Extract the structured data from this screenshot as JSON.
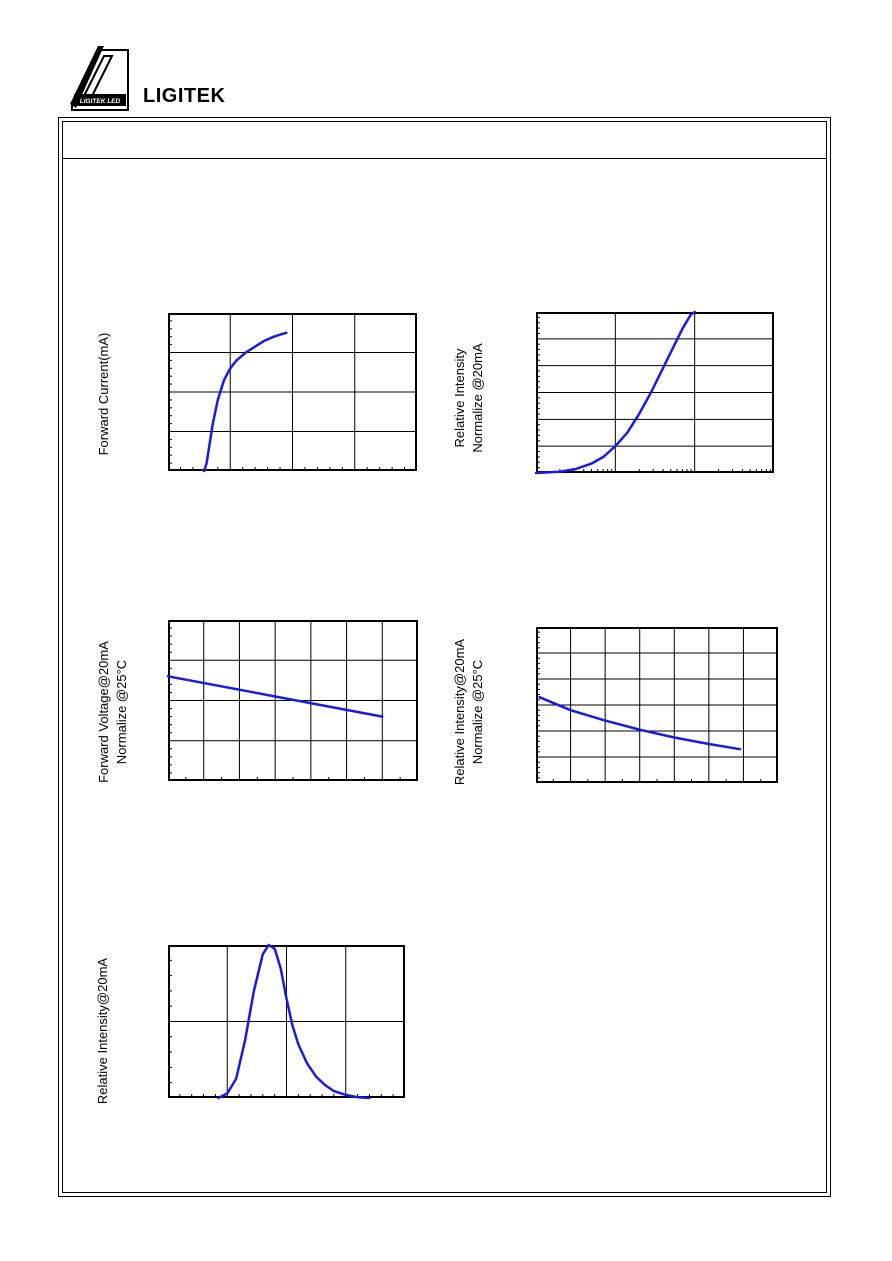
{
  "brand": {
    "name": "LIGITEK",
    "logo_text": "LIGITEK LED"
  },
  "colors": {
    "curve": "#1a1ae6",
    "frame": "#000000",
    "grid": "#000000"
  },
  "charts": {
    "forward_current": {
      "ylabel_lines": [
        "Forward Current(mA)"
      ]
    },
    "relative_intensity_current": {
      "ylabel_lines": [
        "Relative Intensity",
        "Normalize @20mA"
      ]
    },
    "forward_voltage_temp": {
      "ylabel_lines": [
        "Forward Voltage@20mA",
        "Normalize @25°C"
      ]
    },
    "relative_intensity_temp": {
      "ylabel_lines": [
        "Relative Intensity@20mA",
        "Normalize @25°C"
      ]
    },
    "spectrum": {
      "ylabel_lines": [
        "Relative Intensity@20mA"
      ]
    }
  },
  "chart_data": [
    {
      "id": "forward_current",
      "type": "line",
      "title": "",
      "xlabel": "",
      "ylabel": "Forward Current(mA)",
      "xlim": [
        0,
        4
      ],
      "ylim": [
        0,
        4
      ],
      "x_major": 4,
      "y_major": 4,
      "x_minor": 5,
      "y_minor": 5,
      "xscale": "linear",
      "grid": true,
      "x": [
        0.58,
        0.62,
        0.66,
        0.72,
        0.8,
        0.9,
        1.0,
        1.1,
        1.25,
        1.4,
        1.55,
        1.7,
        1.8,
        1.9
      ],
      "values": [
        0.0,
        0.2,
        0.6,
        1.2,
        1.8,
        2.3,
        2.6,
        2.8,
        3.0,
        3.15,
        3.3,
        3.4,
        3.45,
        3.5
      ]
    },
    {
      "id": "relative_intensity_current",
      "type": "line",
      "title": "",
      "xlabel": "",
      "ylabel": "Relative Intensity Normalize @20mA",
      "xlim": [
        0,
        3
      ],
      "ylim": [
        0,
        6
      ],
      "x_major": 3,
      "y_major": 6,
      "x_minor": 9,
      "y_minor": 5,
      "xscale": "log",
      "grid": true,
      "x": [
        0.0,
        0.3,
        0.5,
        0.7,
        0.85,
        1.0,
        1.15,
        1.3,
        1.45,
        1.6,
        1.75,
        1.85,
        1.95,
        2.0
      ],
      "values": [
        0.0,
        0.05,
        0.15,
        0.35,
        0.6,
        1.0,
        1.5,
        2.2,
        3.0,
        3.9,
        4.8,
        5.4,
        5.9,
        6.0
      ]
    },
    {
      "id": "forward_voltage_temp",
      "type": "line",
      "title": "",
      "xlabel": "",
      "ylabel": "Forward Voltage@20mA Normalize @25°C",
      "xlim": [
        0,
        7
      ],
      "ylim": [
        0,
        4
      ],
      "x_major": 7,
      "y_major": 4,
      "x_minor": 2,
      "y_minor": 5,
      "xscale": "linear",
      "grid": true,
      "x": [
        0.0,
        6.0
      ],
      "values": [
        2.6,
        1.6
      ]
    },
    {
      "id": "relative_intensity_temp",
      "type": "line",
      "title": "",
      "xlabel": "",
      "ylabel": "Relative Intensity@20mA Normalize @25°C",
      "xlim": [
        0,
        7
      ],
      "ylim": [
        0,
        6
      ],
      "x_major": 7,
      "y_major": 6,
      "x_minor": 2,
      "y_minor": 5,
      "xscale": "linear",
      "grid": true,
      "x": [
        0.1,
        1.0,
        2.0,
        3.0,
        4.0,
        5.0,
        5.9
      ],
      "values": [
        3.3,
        2.8,
        2.4,
        2.05,
        1.75,
        1.5,
        1.3
      ]
    },
    {
      "id": "spectrum",
      "type": "line",
      "title": "",
      "xlabel": "",
      "ylabel": "Relative Intensity@20mA",
      "xlim": [
        0,
        4
      ],
      "ylim": [
        0,
        2
      ],
      "x_major": 4,
      "y_major": 2,
      "x_minor": 5,
      "y_minor": 5,
      "xscale": "linear",
      "grid": true,
      "x": [
        0.85,
        1.0,
        1.15,
        1.3,
        1.45,
        1.6,
        1.7,
        1.8,
        1.9,
        2.0,
        2.1,
        2.2,
        2.35,
        2.5,
        2.65,
        2.8,
        3.0,
        3.2,
        3.4
      ],
      "values": [
        0.0,
        0.06,
        0.25,
        0.75,
        1.4,
        1.88,
        2.0,
        1.95,
        1.7,
        1.3,
        0.95,
        0.7,
        0.45,
        0.28,
        0.17,
        0.09,
        0.04,
        0.01,
        0.0
      ]
    }
  ]
}
